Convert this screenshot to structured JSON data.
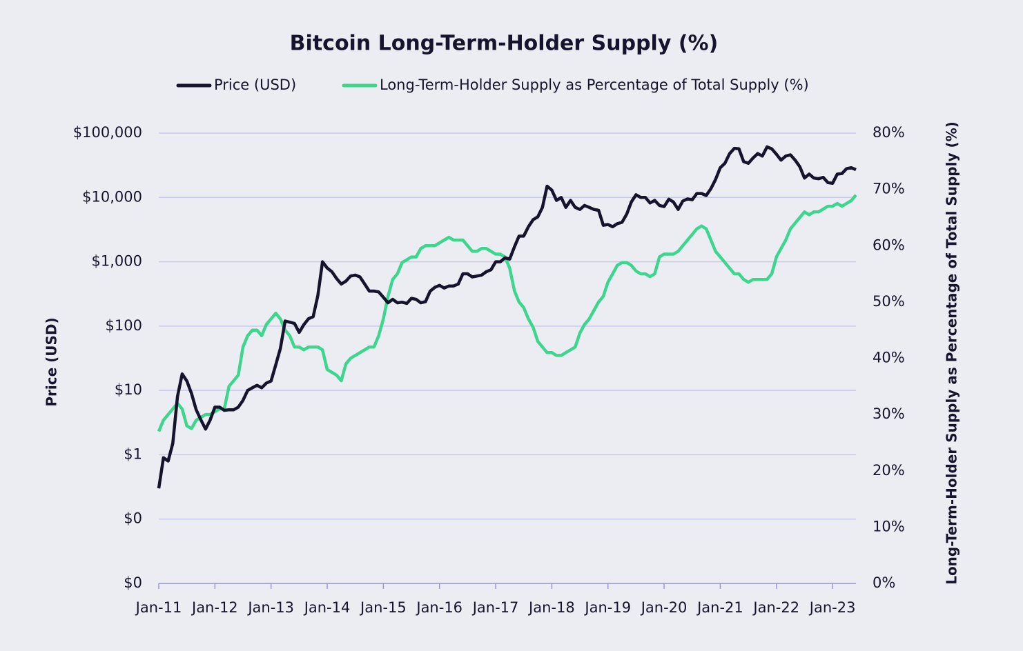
{
  "chart_data": {
    "type": "line",
    "title": "Bitcoin Long-Term-Holder Supply (%)",
    "y_label": "Price (USD)",
    "y2_label": "Long-Term-Holder Supply as Percentage of Total Supply (%)",
    "log_y": true,
    "grid": true,
    "x": [
      "2011-01",
      "2011-02",
      "2011-03",
      "2011-04",
      "2011-05",
      "2011-06",
      "2011-07",
      "2011-08",
      "2011-09",
      "2011-10",
      "2011-11",
      "2011-12",
      "2012-01",
      "2012-02",
      "2012-03",
      "2012-04",
      "2012-05",
      "2012-06",
      "2012-07",
      "2012-08",
      "2012-09",
      "2012-10",
      "2012-11",
      "2012-12",
      "2013-01",
      "2013-02",
      "2013-03",
      "2013-04",
      "2013-05",
      "2013-06",
      "2013-07",
      "2013-08",
      "2013-09",
      "2013-10",
      "2013-11",
      "2013-12",
      "2014-01",
      "2014-02",
      "2014-03",
      "2014-04",
      "2014-05",
      "2014-06",
      "2014-07",
      "2014-08",
      "2014-09",
      "2014-10",
      "2014-11",
      "2014-12",
      "2015-01",
      "2015-02",
      "2015-03",
      "2015-04",
      "2015-05",
      "2015-06",
      "2015-07",
      "2015-08",
      "2015-09",
      "2015-10",
      "2015-11",
      "2015-12",
      "2016-01",
      "2016-02",
      "2016-03",
      "2016-04",
      "2016-05",
      "2016-06",
      "2016-07",
      "2016-08",
      "2016-09",
      "2016-10",
      "2016-11",
      "2016-12",
      "2017-01",
      "2017-02",
      "2017-03",
      "2017-04",
      "2017-05",
      "2017-06",
      "2017-07",
      "2017-08",
      "2017-09",
      "2017-10",
      "2017-11",
      "2017-12",
      "2018-01",
      "2018-02",
      "2018-03",
      "2018-04",
      "2018-05",
      "2018-06",
      "2018-07",
      "2018-08",
      "2018-09",
      "2018-10",
      "2018-11",
      "2018-12",
      "2019-01",
      "2019-02",
      "2019-03",
      "2019-04",
      "2019-05",
      "2019-06",
      "2019-07",
      "2019-08",
      "2019-09",
      "2019-10",
      "2019-11",
      "2019-12",
      "2020-01",
      "2020-02",
      "2020-03",
      "2020-04",
      "2020-05",
      "2020-06",
      "2020-07",
      "2020-08",
      "2020-09",
      "2020-10",
      "2020-11",
      "2020-12",
      "2021-01",
      "2021-02",
      "2021-03",
      "2021-04",
      "2021-05",
      "2021-06",
      "2021-07",
      "2021-08",
      "2021-09",
      "2021-10",
      "2021-11",
      "2021-12",
      "2022-01",
      "2022-02",
      "2022-03",
      "2022-04",
      "2022-05",
      "2022-06",
      "2022-07",
      "2022-08",
      "2022-09",
      "2022-10",
      "2022-11",
      "2022-12",
      "2023-01",
      "2023-02",
      "2023-03",
      "2023-04",
      "2023-05",
      "2023-06"
    ],
    "xlim": [
      "2011-01",
      "2023-06"
    ],
    "xticks": [
      {
        "value": "2011-01",
        "label": "Jan-11"
      },
      {
        "value": "2012-01",
        "label": "Jan-12"
      },
      {
        "value": "2013-01",
        "label": "Jan-13"
      },
      {
        "value": "2014-01",
        "label": "Jan-14"
      },
      {
        "value": "2015-01",
        "label": "Jan-15"
      },
      {
        "value": "2016-01",
        "label": "Jan-16"
      },
      {
        "value": "2017-01",
        "label": "Jan-17"
      },
      {
        "value": "2018-01",
        "label": "Jan-18"
      },
      {
        "value": "2019-01",
        "label": "Jan-19"
      },
      {
        "value": "2020-01",
        "label": "Jan-20"
      },
      {
        "value": "2021-01",
        "label": "Jan-21"
      },
      {
        "value": "2022-01",
        "label": "Jan-22"
      },
      {
        "value": "2023-01",
        "label": "Jan-23"
      }
    ],
    "ylim": [
      0.01,
      100000
    ],
    "yticks": [
      {
        "value": 0.01,
        "label": "$0"
      },
      {
        "value": 0.1,
        "label": "$0"
      },
      {
        "value": 1,
        "label": "$1"
      },
      {
        "value": 10,
        "label": "$10"
      },
      {
        "value": 100,
        "label": "$100"
      },
      {
        "value": 1000,
        "label": "$1,000"
      },
      {
        "value": 10000,
        "label": "$10,000"
      },
      {
        "value": 100000,
        "label": "$100,000"
      }
    ],
    "y2lim": [
      0,
      80
    ],
    "y2ticks": [
      {
        "value": 0,
        "label": "0%"
      },
      {
        "value": 10,
        "label": "10%"
      },
      {
        "value": 20,
        "label": "20%"
      },
      {
        "value": 30,
        "label": "30%"
      },
      {
        "value": 40,
        "label": "40%"
      },
      {
        "value": 50,
        "label": "50%"
      },
      {
        "value": 60,
        "label": "60%"
      },
      {
        "value": 70,
        "label": "70%"
      },
      {
        "value": 80,
        "label": "80%"
      }
    ],
    "series": [
      {
        "name": "Price (USD)",
        "color": "#15142c",
        "values": [
          0.3,
          0.9,
          0.8,
          1.5,
          8,
          18,
          14,
          9,
          5,
          3.5,
          2.5,
          3.5,
          5.5,
          5.5,
          4.9,
          5,
          5,
          5.5,
          7,
          10,
          11,
          12,
          11,
          13,
          14,
          25,
          45,
          120,
          115,
          110,
          80,
          105,
          130,
          140,
          300,
          1000,
          800,
          700,
          550,
          450,
          500,
          600,
          620,
          580,
          450,
          350,
          350,
          340,
          280,
          230,
          260,
          230,
          235,
          225,
          270,
          260,
          230,
          240,
          350,
          400,
          430,
          390,
          420,
          420,
          450,
          650,
          650,
          580,
          600,
          620,
          700,
          750,
          1000,
          1000,
          1150,
          1100,
          1700,
          2500,
          2500,
          3500,
          4500,
          5000,
          7000,
          15000,
          13000,
          9000,
          10000,
          7000,
          9000,
          7000,
          6500,
          7500,
          7000,
          6500,
          6300,
          3700,
          3800,
          3500,
          3900,
          4100,
          5500,
          8500,
          11000,
          10000,
          10000,
          8200,
          9000,
          7500,
          7200,
          9400,
          8500,
          6500,
          8800,
          9500,
          9200,
          11500,
          11500,
          10700,
          13700,
          19000,
          29000,
          34000,
          48000,
          58000,
          57000,
          36000,
          34000,
          41000,
          48000,
          44000,
          61000,
          57000,
          47000,
          38000,
          44000,
          46000,
          38000,
          30000,
          20000,
          23000,
          20000,
          19500,
          20500,
          17000,
          16600,
          23000,
          23500,
          28000,
          29000,
          27000
        ]
      },
      {
        "name": "Long-Term-Holder Supply as Percentage of Total Supply (%)",
        "color": "#3ed68f",
        "axis": "y2",
        "values": [
          27,
          29,
          30,
          31,
          32,
          31,
          28,
          27.5,
          29,
          29.5,
          30,
          30,
          30.5,
          31,
          31,
          35,
          36,
          37,
          42,
          44,
          45,
          45,
          44,
          46,
          47,
          48,
          47,
          45,
          44,
          42,
          42,
          41.5,
          42,
          42,
          42,
          41.5,
          38,
          37.5,
          37,
          36,
          39,
          40,
          40.5,
          41,
          41.5,
          42,
          42,
          44,
          47,
          51,
          54,
          55,
          57,
          57.5,
          58,
          58,
          59.5,
          60,
          60,
          60,
          60.5,
          61,
          61.5,
          61,
          61,
          61,
          60,
          59,
          59,
          59.5,
          59.5,
          59,
          58.5,
          58.5,
          58,
          56,
          52,
          50,
          49,
          47,
          45.5,
          43,
          42,
          41,
          41,
          40.5,
          40.5,
          41,
          41.5,
          42,
          44.5,
          46,
          47,
          48.5,
          50,
          51,
          53.5,
          55,
          56.5,
          57,
          57,
          56.5,
          55.5,
          55,
          55,
          54.5,
          55,
          58,
          58.5,
          58.5,
          58.5,
          59,
          60,
          61,
          62,
          63,
          63.5,
          63,
          61,
          59,
          58,
          57,
          56,
          55,
          55,
          54,
          53.5,
          54,
          54,
          54,
          54,
          55,
          58,
          59.5,
          61,
          63,
          64,
          65,
          66,
          65.5,
          66,
          66,
          66.5,
          67,
          67,
          67.5,
          67,
          67.5,
          68,
          69
        ]
      }
    ]
  }
}
